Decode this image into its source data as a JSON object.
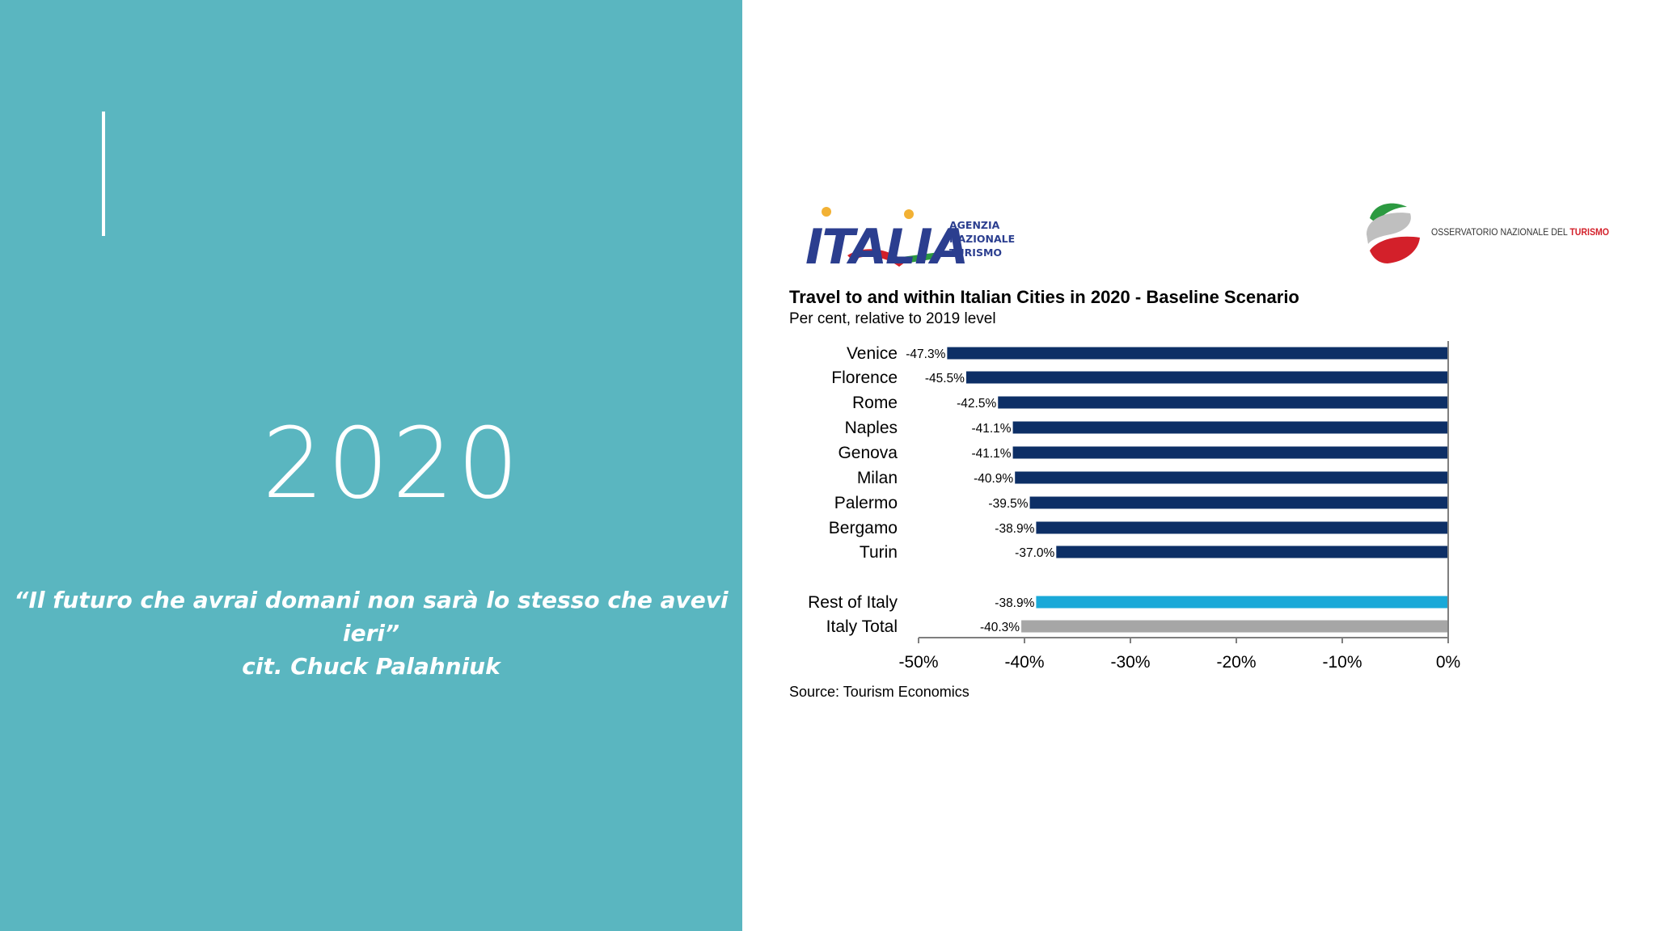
{
  "slide": {
    "year": "2020",
    "quote_line1": "“Il futuro che avrai domani non sarà lo stesso che avevi ieri”",
    "quote_line2": "cit. Chuck Palahniuk"
  },
  "logos": {
    "italia_wordmark": "ITALIA",
    "enit_line1": "AGENZIA",
    "enit_line2": "NAZIONALE",
    "enit_line3": "TURISMO",
    "osservatorio_text": "OSSERVATORIO NAZIONALE DEL",
    "osservatorio_highlight": "TURISMO"
  },
  "colors": {
    "panel_teal": "#5ab6c0",
    "bar_navy": "#0d2f66",
    "bar_cyan": "#1aa9d8",
    "bar_grey": "#a6a6a6",
    "logo_red": "#d3202a",
    "logo_green": "#2c9a41"
  },
  "chart_data": {
    "type": "bar",
    "orientation": "horizontal",
    "title": "Travel to and within Italian Cities in 2020 - Baseline Scenario",
    "subtitle": "Per cent, relative to 2019 level",
    "source": "Source: Tourism Economics",
    "categories": [
      "Venice",
      "Florence",
      "Rome",
      "Naples",
      "Genova",
      "Milan",
      "Palermo",
      "Bergamo",
      "Turin",
      "Rest of Italy",
      "Italy Total"
    ],
    "values": [
      -47.3,
      -45.5,
      -42.5,
      -41.1,
      -41.1,
      -40.9,
      -39.5,
      -38.9,
      -37.0,
      -38.9,
      -40.3
    ],
    "data_labels": [
      "-47.3%",
      "-45.5%",
      "-42.5%",
      "-41.1%",
      "-41.1%",
      "-40.9%",
      "-39.5%",
      "-38.9%",
      "-37.0%",
      "-38.9%",
      "-40.3%"
    ],
    "bar_color_keys": [
      "navy",
      "navy",
      "navy",
      "navy",
      "navy",
      "navy",
      "navy",
      "navy",
      "navy",
      "cyan",
      "grey"
    ],
    "x_ticks": [
      -50,
      -40,
      -30,
      -20,
      -10,
      0
    ],
    "x_tick_labels": [
      "-50%",
      "-40%",
      "-30%",
      "-20%",
      "-10%",
      "0%"
    ],
    "xlim": [
      -50,
      0
    ],
    "grid": false,
    "legend": "none"
  }
}
